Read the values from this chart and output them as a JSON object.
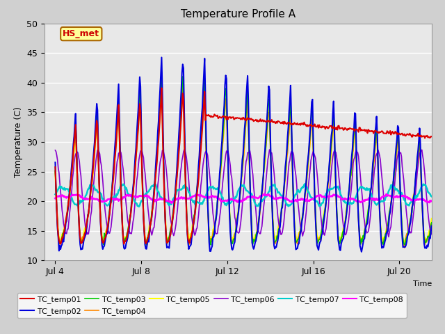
{
  "title": "Temperature Profile A",
  "xlabel": "Time",
  "ylabel": "Temperature (C)",
  "xlim_days": [
    3.5,
    21.5
  ],
  "ylim": [
    10,
    50
  ],
  "yticks": [
    10,
    15,
    20,
    25,
    30,
    35,
    40,
    45,
    50
  ],
  "xtick_labels": [
    "Jul 4",
    "Jul 8",
    "Jul 12",
    "Jul 16",
    "Jul 20"
  ],
  "xtick_positions": [
    4,
    8,
    12,
    16,
    20
  ],
  "fig_bg_color": "#d0d0d0",
  "plot_bg_color": "#e8e8e8",
  "annotation_label": "HS_met",
  "annotation_color": "#cc0000",
  "annotation_bg": "#ffff99",
  "annotation_border": "#aa6600",
  "series": {
    "TC_temp01": {
      "color": "#dd0000",
      "lw": 1.5,
      "zorder": 8
    },
    "TC_temp02": {
      "color": "#0000dd",
      "lw": 1.5,
      "zorder": 7
    },
    "TC_temp03": {
      "color": "#00cc00",
      "lw": 1.2,
      "zorder": 5
    },
    "TC_temp04": {
      "color": "#ff8800",
      "lw": 1.2,
      "zorder": 5
    },
    "TC_temp05": {
      "color": "#ffff00",
      "lw": 1.5,
      "zorder": 4
    },
    "TC_temp06": {
      "color": "#8800cc",
      "lw": 1.2,
      "zorder": 6
    },
    "TC_temp07": {
      "color": "#00cccc",
      "lw": 1.8,
      "zorder": 6
    },
    "TC_temp08": {
      "color": "#ff00ff",
      "lw": 2.0,
      "zorder": 7
    }
  },
  "legend_fontsize": 8,
  "title_fontsize": 11
}
